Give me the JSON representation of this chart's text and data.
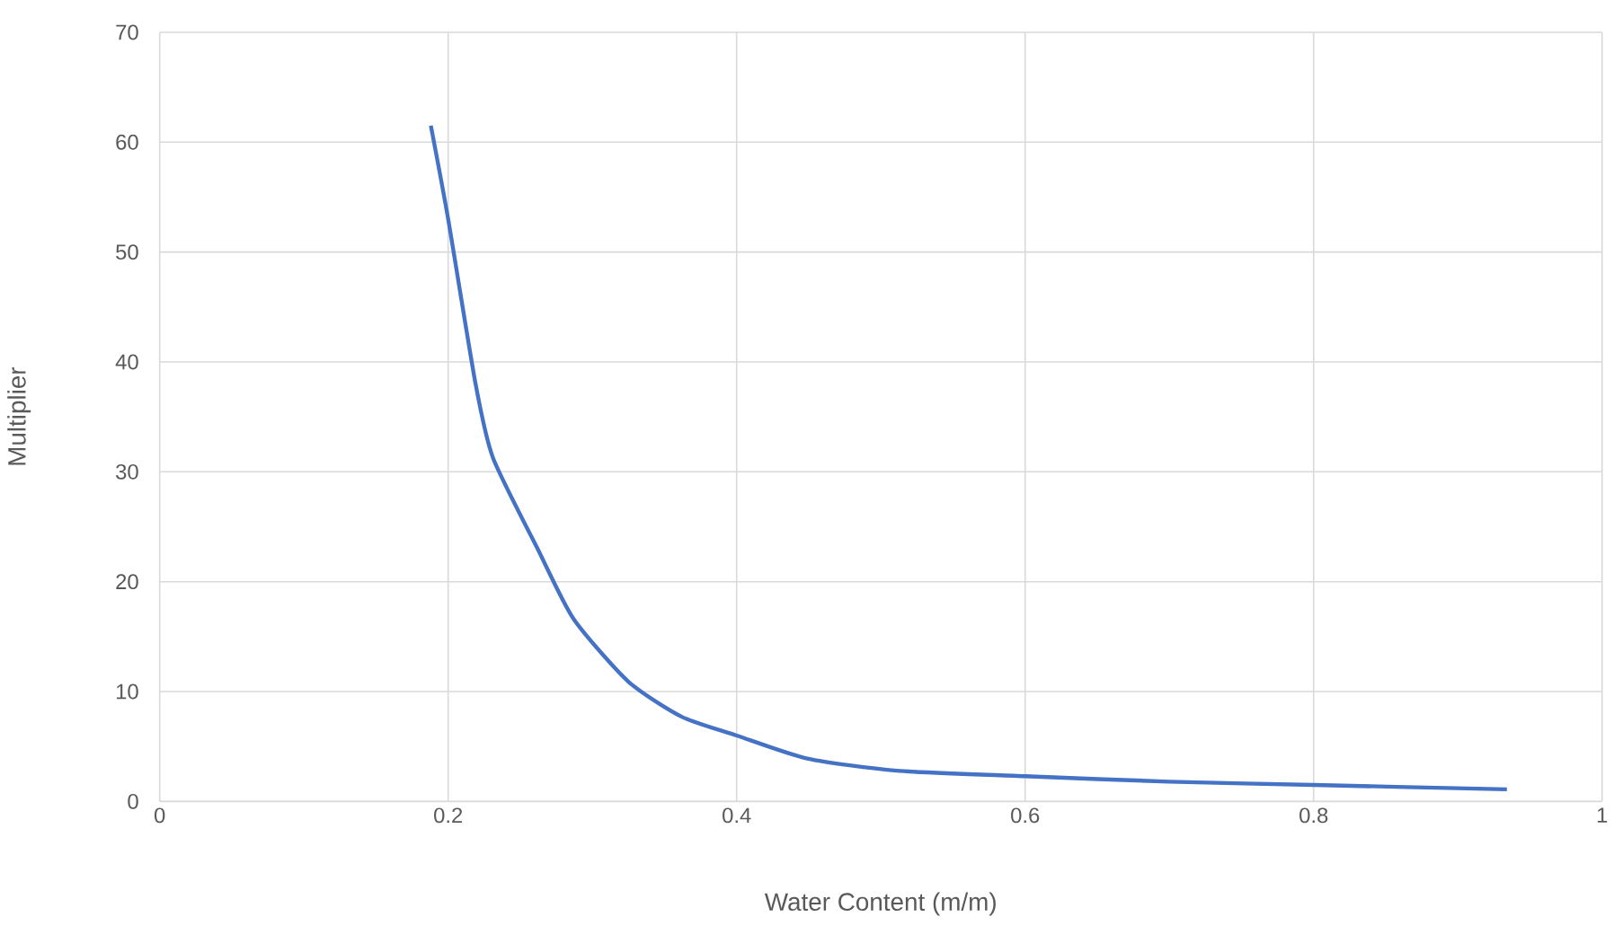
{
  "chart_data": {
    "type": "line",
    "xlabel": "Water Content (m/m)",
    "ylabel": "Multiplier",
    "series": [
      {
        "color": "#4472c4",
        "x": [
          0.188,
          0.2,
          0.219,
          0.231,
          0.262,
          0.287,
          0.325,
          0.362,
          0.4,
          0.449,
          0.511,
          0.6,
          0.7,
          0.8,
          0.934
        ],
        "values": [
          61.5,
          53,
          38,
          31.3,
          23,
          16.6,
          10.9,
          7.7,
          6,
          3.9,
          2.8,
          2.3,
          1.8,
          1.5,
          1.1
        ]
      }
    ],
    "xlim": [
      0,
      1
    ],
    "xticks": [
      0,
      0.2,
      0.4,
      0.6,
      0.8,
      1
    ],
    "ylim": [
      0,
      70
    ],
    "yticks": [
      0,
      10,
      20,
      30,
      40,
      50,
      60,
      70
    ],
    "grid": true,
    "marker": "none",
    "line_style": "solid"
  }
}
